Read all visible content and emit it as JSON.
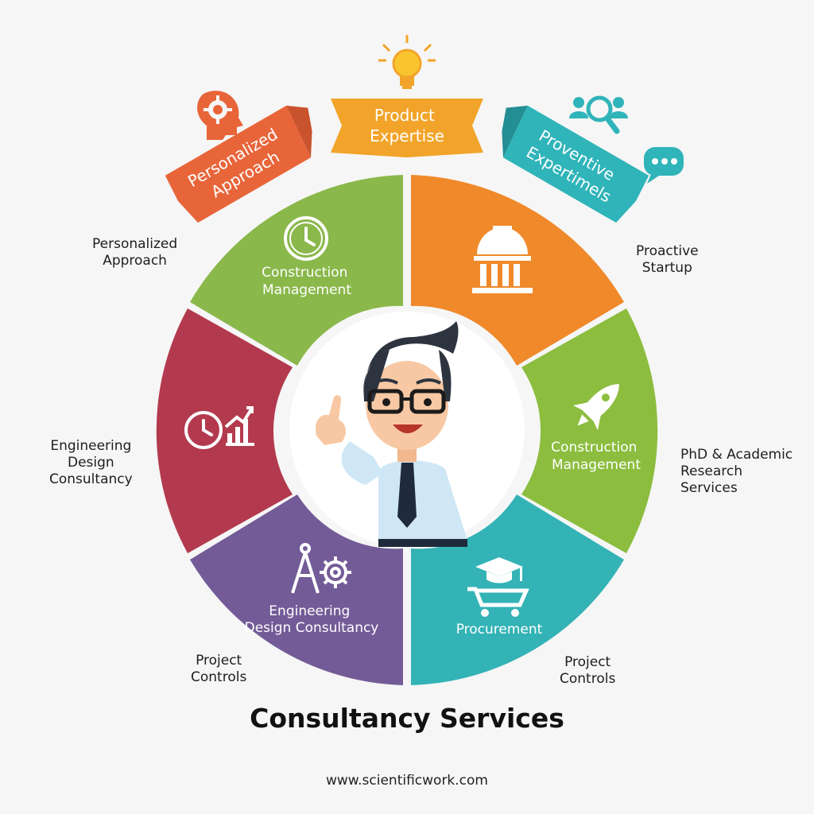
{
  "diagram": {
    "title": "Consultancy Services",
    "footer": "www.scientificwork.com",
    "banners": [
      {
        "lines": [
          "Personalized",
          "Approach"
        ],
        "color": "#e8653a",
        "icon": "gear-head-icon"
      },
      {
        "lines": [
          "Product",
          "Expertise"
        ],
        "color": "#f2a42a",
        "icon": "lightbulb-icon"
      },
      {
        "lines": [
          "Proventive",
          "Expertimels"
        ],
        "color": "#2fb4b9",
        "icon": "people-search-icon"
      }
    ],
    "extra_icons": [
      "chat-bubble-icon"
    ],
    "segments": [
      {
        "lines": [
          "Construction",
          "Management"
        ],
        "color": "#8ab84b",
        "icon": "clock-icon"
      },
      {
        "lines": [],
        "color": "#f0892a",
        "icon": "building-icon"
      },
      {
        "lines": [
          "Construction",
          "Management"
        ],
        "color": "#8cbd3f",
        "icon": "rocket-icon"
      },
      {
        "lines": [
          "Procurement"
        ],
        "color": "#33b3b6",
        "icon": "cart-graduation-icon"
      },
      {
        "lines": [
          "Engineering",
          "Design Consultancy"
        ],
        "color": "#735b97",
        "icon": "compass-gear-icon"
      },
      {
        "lines": [],
        "color": "#b33a4e",
        "icon": "clock-chart-icon"
      }
    ],
    "outer_labels": [
      {
        "id": "personalized",
        "lines": [
          "Personalized",
          "Approach"
        ]
      },
      {
        "id": "proactive",
        "lines": [
          "Proactive",
          "Startup"
        ]
      },
      {
        "id": "phd",
        "lines": [
          "PhD & Academic",
          "Research",
          "Services"
        ]
      },
      {
        "id": "engineering",
        "lines": [
          "Engineering",
          "Design",
          "Consultancy"
        ]
      },
      {
        "id": "project-left",
        "lines": [
          "Project",
          "Controls"
        ]
      },
      {
        "id": "project-right",
        "lines": [
          "Project",
          "Controls"
        ]
      }
    ],
    "center": {
      "figure": "consultant-avatar"
    }
  }
}
